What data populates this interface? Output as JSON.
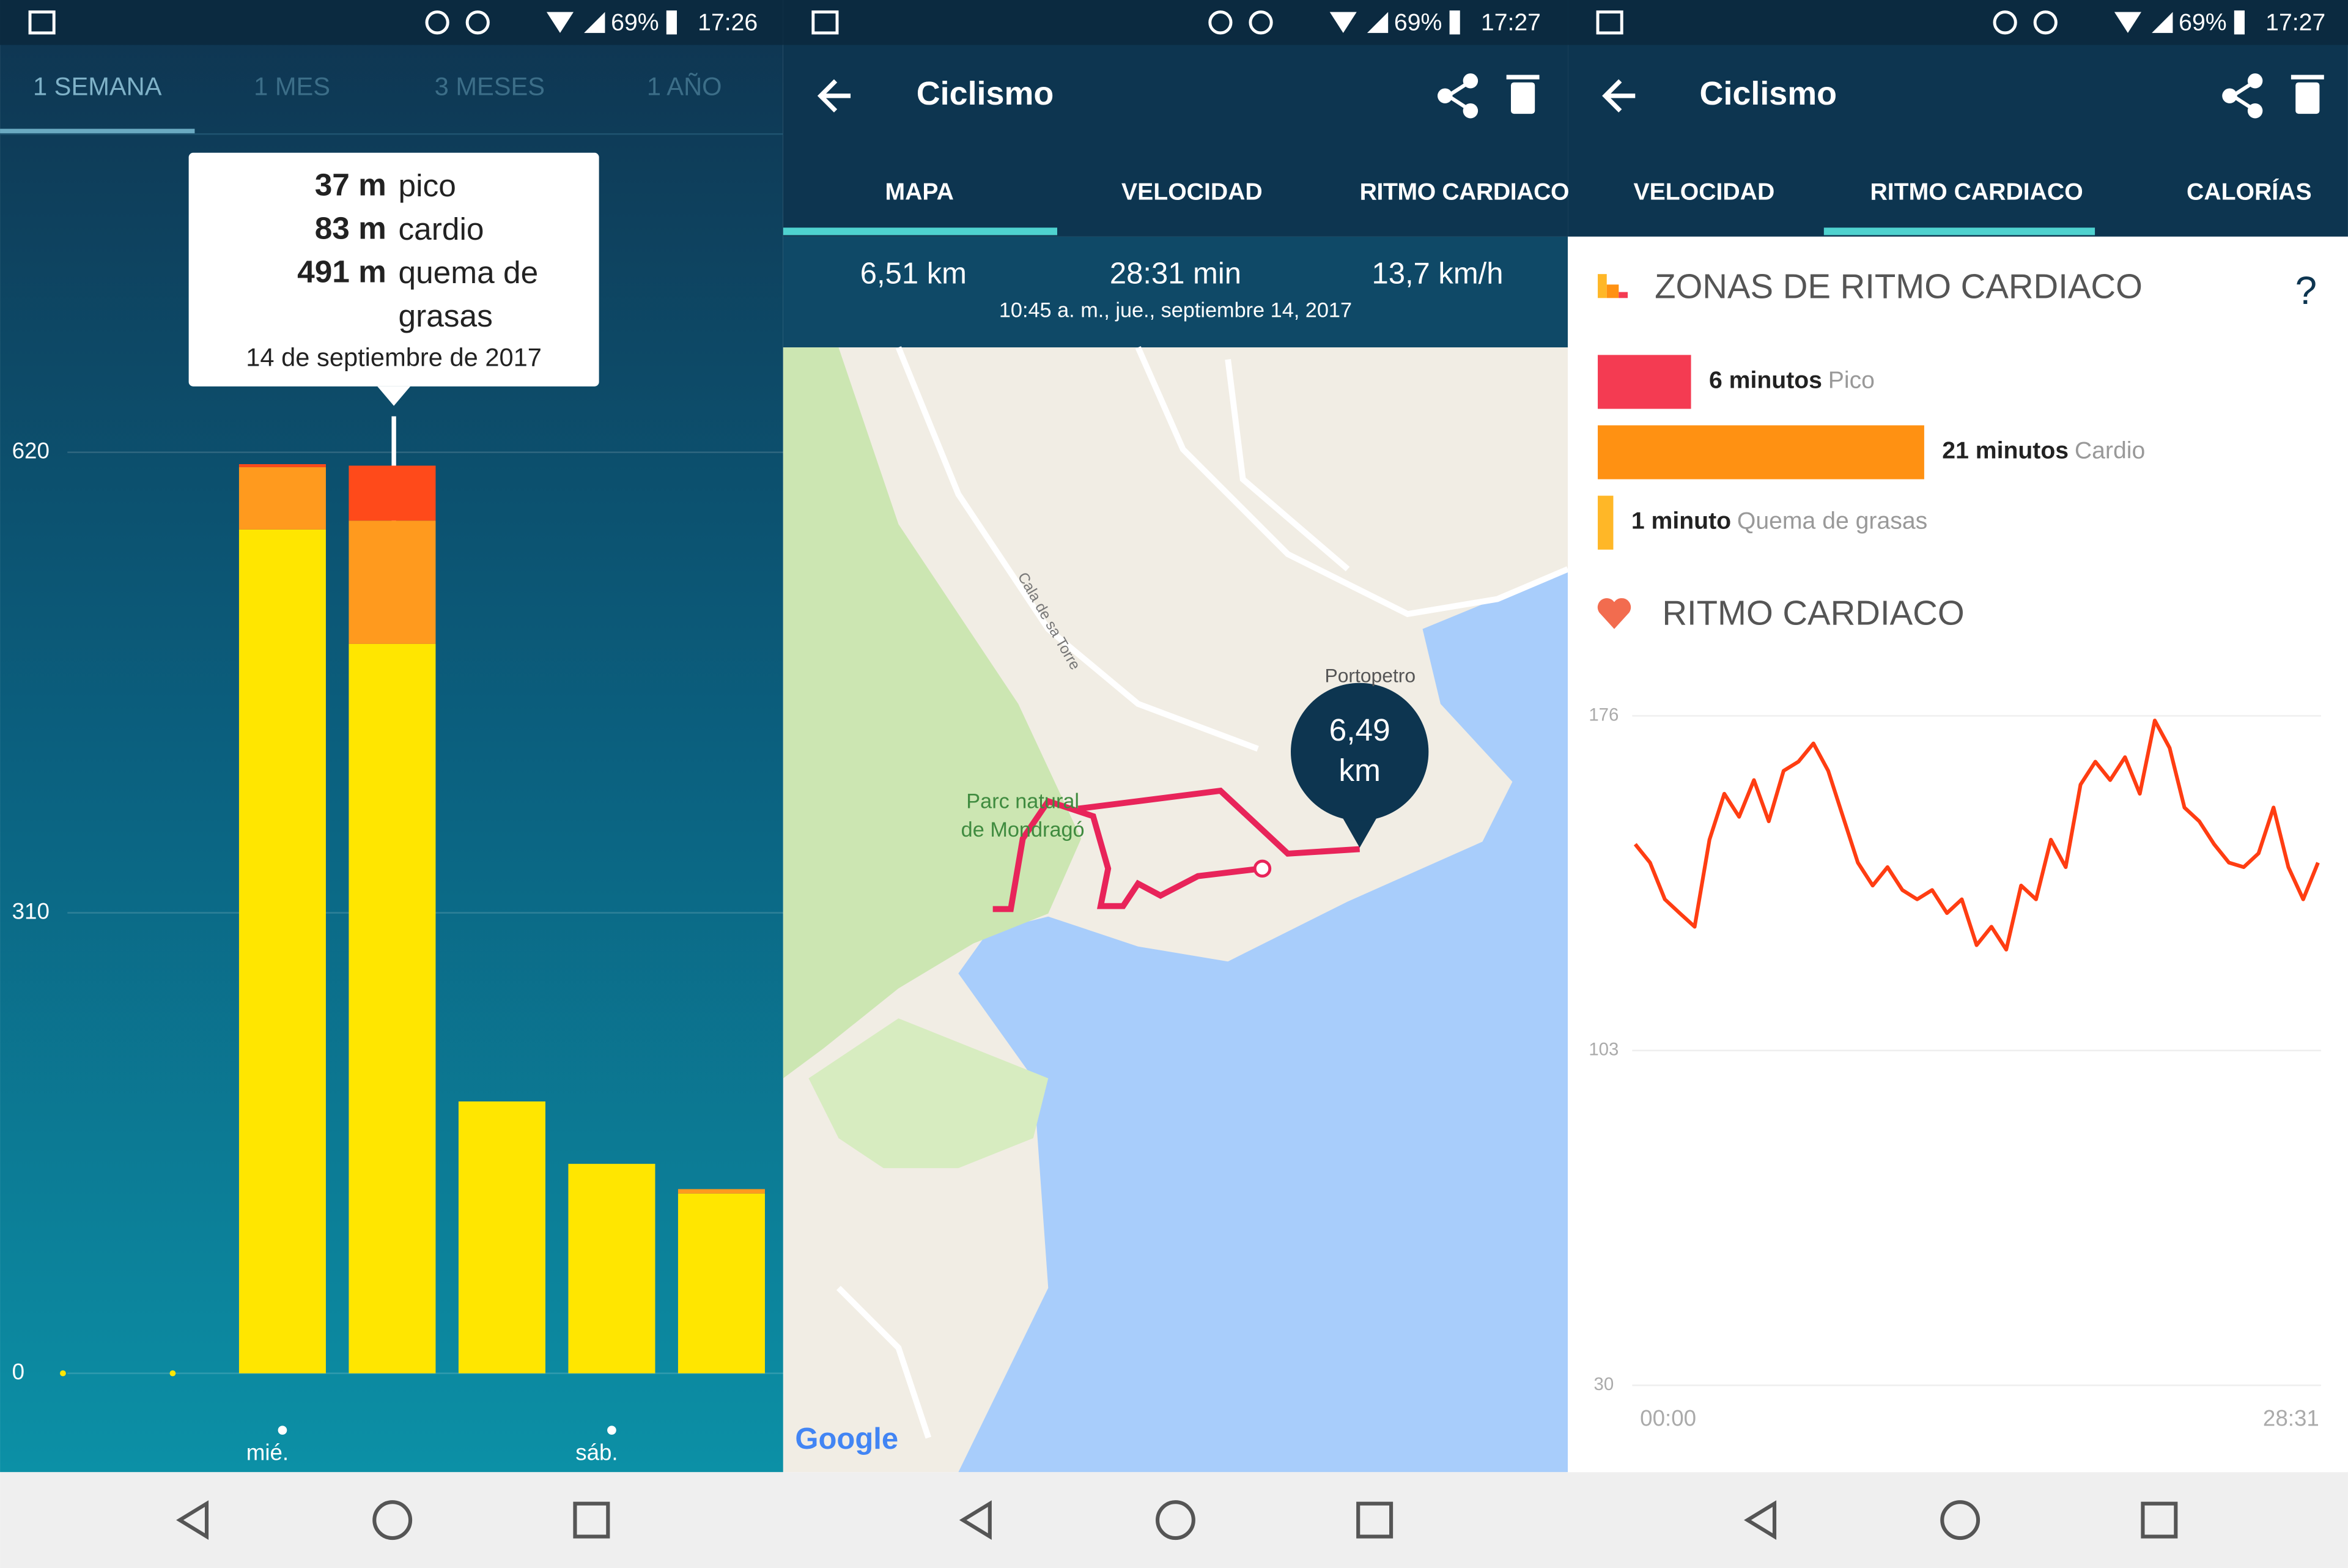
{
  "screens": [
    {
      "status": {
        "battery": "69%",
        "time": "17:26"
      },
      "tabs": [
        "1 SEMANA",
        "1 MES",
        "3 MESES",
        "1 AÑO"
      ]
    },
    {
      "status": {
        "battery": "69%",
        "time": "17:27"
      },
      "title": "Ciclismo",
      "tabs": [
        "MAPA",
        "VELOCIDAD",
        "RITMO CARDIACO"
      ],
      "stats": [
        "6,51 km",
        "28:31 min",
        "13,7 km/h"
      ],
      "date": "10:45 a. m., jue., septiembre 14, 2017",
      "map": {
        "labels": [
          "Portopetro",
          "Parc natural",
          "de Mondragó",
          "Cala de sa Torre"
        ],
        "bubble": [
          "6,49",
          "km"
        ],
        "attribution": "Google"
      }
    },
    {
      "status": {
        "battery": "69%",
        "time": "17:27"
      },
      "title": "Ciclismo",
      "tabs": [
        "VELOCIDAD",
        "RITMO CARDIACO",
        "CALORÍAS"
      ],
      "help": "?"
    }
  ],
  "chart_data": [
    {
      "type": "stacked-bar",
      "annotation": "14 de septiembre de 2017",
      "categories": [
        null,
        null,
        "mié.",
        null,
        null,
        "sáb.",
        null
      ],
      "series": [
        {
          "name": "quema de grasas",
          "color": "#ffe600",
          "values": [
            0,
            0,
            568,
            491,
            183,
            141,
            121
          ],
          "value_labels": [
            null,
            null,
            null,
            "491 m",
            null,
            null,
            null
          ]
        },
        {
          "name": "cardio",
          "color": "#ff9a1e",
          "values": [
            0,
            0,
            42,
            83,
            0,
            0,
            3
          ],
          "value_labels": [
            null,
            null,
            null,
            "83 m",
            null,
            null,
            null
          ]
        },
        {
          "name": "pico",
          "color": "#ff4a1a",
          "values": [
            0,
            0,
            2,
            37,
            0,
            0,
            0
          ],
          "value_labels": [
            null,
            null,
            null,
            "37 m",
            null,
            null,
            null
          ]
        }
      ],
      "ylim": [
        0,
        620
      ],
      "yticks": [
        0,
        310,
        620
      ],
      "grid": true
    },
    {
      "type": "hbar",
      "title": "ZONAS DE RITMO CARDIACO",
      "categories": [
        "Pico",
        "Cardio",
        "Quema de grasas"
      ],
      "values": [
        6,
        21,
        1
      ],
      "value_labels": [
        "6 minutos",
        "21 minutos",
        "1 minuto"
      ],
      "colors": [
        "#f43b52",
        "#ff9112",
        "#ffb727"
      ]
    },
    {
      "type": "line",
      "title": "RITMO CARDIACO",
      "color": "#ff3d12",
      "categories": [
        "00:00",
        null,
        null,
        null,
        null,
        null,
        null,
        null,
        null,
        null,
        null,
        null,
        null,
        null,
        null,
        null,
        null,
        null,
        null,
        null,
        null,
        null,
        null,
        null,
        null,
        null,
        null,
        null,
        null,
        null,
        null,
        null,
        null,
        null,
        null,
        null,
        null,
        null,
        null,
        null,
        null,
        null,
        null,
        null,
        null,
        null,
        "28:31"
      ],
      "values": [
        148,
        144,
        136,
        133,
        130,
        149,
        159,
        154,
        162,
        153,
        164,
        166,
        170,
        164,
        154,
        144,
        139,
        143,
        138,
        136,
        138,
        133,
        136,
        126,
        130,
        125,
        139,
        136,
        149,
        143,
        161,
        166,
        162,
        167,
        159,
        175,
        169,
        156,
        153,
        148,
        144,
        143,
        146,
        156,
        143,
        136,
        144
      ],
      "ylim": [
        30,
        176
      ],
      "yticks": [
        30,
        103,
        176
      ],
      "grid": true
    }
  ]
}
